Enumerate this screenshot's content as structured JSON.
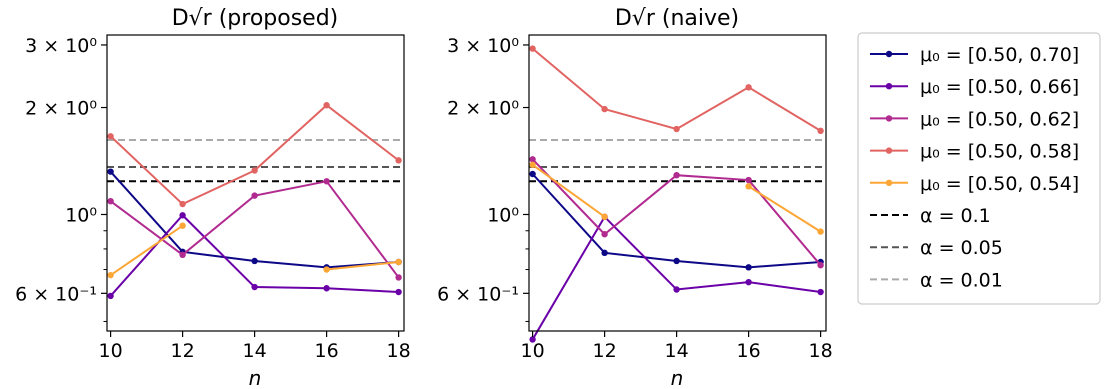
{
  "chart_data": [
    {
      "type": "line",
      "title": "D√r (proposed)",
      "xlabel": "n",
      "ylabel": "",
      "yscale": "log",
      "xlim": [
        9.9,
        18.15
      ],
      "ylim": [
        0.47,
        3.2
      ],
      "x": [
        10,
        12,
        14,
        16,
        18
      ],
      "xticks": [
        "10",
        "12",
        "14",
        "16",
        "18"
      ],
      "yticks": [
        {
          "value": 0.6,
          "label": "6 × 10⁻¹"
        },
        {
          "value": 1.0,
          "label": "10⁰"
        },
        {
          "value": 2.0,
          "label": "2 × 10⁰"
        },
        {
          "value": 3.0,
          "label": "3 × 10⁰"
        }
      ],
      "series": [
        {
          "name": "μ₀ = [0.50, 0.70]",
          "color": "#0d0887",
          "values": [
            1.32,
            0.785,
            0.74,
            0.71,
            0.735
          ]
        },
        {
          "name": "μ₀ = [0.50, 0.66]",
          "color": "#6a00a8",
          "values": [
            0.59,
            0.995,
            0.625,
            0.62,
            0.605
          ]
        },
        {
          "name": "μ₀ = [0.50, 0.62]",
          "color": "#b12a90",
          "values": [
            1.09,
            0.77,
            1.13,
            1.24,
            0.665
          ]
        },
        {
          "name": "μ₀ = [0.50, 0.58]",
          "color": "#e16462",
          "values": [
            1.66,
            1.07,
            1.33,
            2.03,
            1.42
          ]
        },
        {
          "name": "μ₀ = [0.50, 0.54]",
          "color": "#fca636",
          "values": [
            0.675,
            0.93,
            null,
            0.7,
            0.735
          ]
        }
      ],
      "hlines": [
        {
          "name": "α = 0.1",
          "value": 1.24,
          "color": "#000000"
        },
        {
          "name": "α = 0.05",
          "value": 1.36,
          "color": "#555555"
        },
        {
          "name": "α = 0.01",
          "value": 1.62,
          "color": "#aaaaaa"
        }
      ]
    },
    {
      "type": "line",
      "title": "D√r (naive)",
      "xlabel": "n",
      "ylabel": "",
      "yscale": "log",
      "xlim": [
        9.9,
        18.15
      ],
      "ylim": [
        0.47,
        3.2
      ],
      "x": [
        10,
        12,
        14,
        16,
        18
      ],
      "xticks": [
        "10",
        "12",
        "14",
        "16",
        "18"
      ],
      "yticks": [
        {
          "value": 0.6,
          "label": "6 × 10⁻¹"
        },
        {
          "value": 1.0,
          "label": "10⁰"
        },
        {
          "value": 2.0,
          "label": "2 × 10⁰"
        },
        {
          "value": 3.0,
          "label": "3 × 10⁰"
        }
      ],
      "series": [
        {
          "name": "μ₀ = [0.50, 0.70]",
          "color": "#0d0887",
          "values": [
            1.3,
            0.78,
            0.74,
            0.71,
            0.735
          ]
        },
        {
          "name": "μ₀ = [0.50, 0.66]",
          "color": "#6a00a8",
          "values": [
            0.445,
            0.985,
            0.615,
            0.645,
            0.605
          ]
        },
        {
          "name": "μ₀ = [0.50, 0.62]",
          "color": "#b12a90",
          "values": [
            1.43,
            0.88,
            1.29,
            1.25,
            0.72
          ]
        },
        {
          "name": "μ₀ = [0.50, 0.58]",
          "color": "#e16462",
          "values": [
            2.93,
            1.98,
            1.74,
            2.28,
            1.72
          ]
        },
        {
          "name": "μ₀ = [0.50, 0.54]",
          "color": "#fca636",
          "values": [
            1.38,
            0.985,
            null,
            1.2,
            0.895
          ]
        }
      ],
      "hlines": [
        {
          "name": "α = 0.1",
          "value": 1.24,
          "color": "#000000"
        },
        {
          "name": "α = 0.05",
          "value": 1.36,
          "color": "#555555"
        },
        {
          "name": "α = 0.01",
          "value": 1.62,
          "color": "#aaaaaa"
        }
      ]
    }
  ],
  "legend": {
    "placement": "right, outside",
    "entries": [
      {
        "label": "μ₀ = [0.50, 0.70]",
        "color": "#0d0887",
        "style": "solid-marker"
      },
      {
        "label": "μ₀ = [0.50, 0.66]",
        "color": "#6a00a8",
        "style": "solid-marker"
      },
      {
        "label": "μ₀ = [0.50, 0.62]",
        "color": "#b12a90",
        "style": "solid-marker"
      },
      {
        "label": "μ₀ = [0.50, 0.58]",
        "color": "#e16462",
        "style": "solid-marker"
      },
      {
        "label": "μ₀ = [0.50, 0.54]",
        "color": "#fca636",
        "style": "solid-marker"
      },
      {
        "label": "α = 0.1",
        "color": "#000000",
        "style": "dashed"
      },
      {
        "label": "α = 0.05",
        "color": "#555555",
        "style": "dashed"
      },
      {
        "label": "α = 0.01",
        "color": "#aaaaaa",
        "style": "dashed"
      }
    ]
  }
}
